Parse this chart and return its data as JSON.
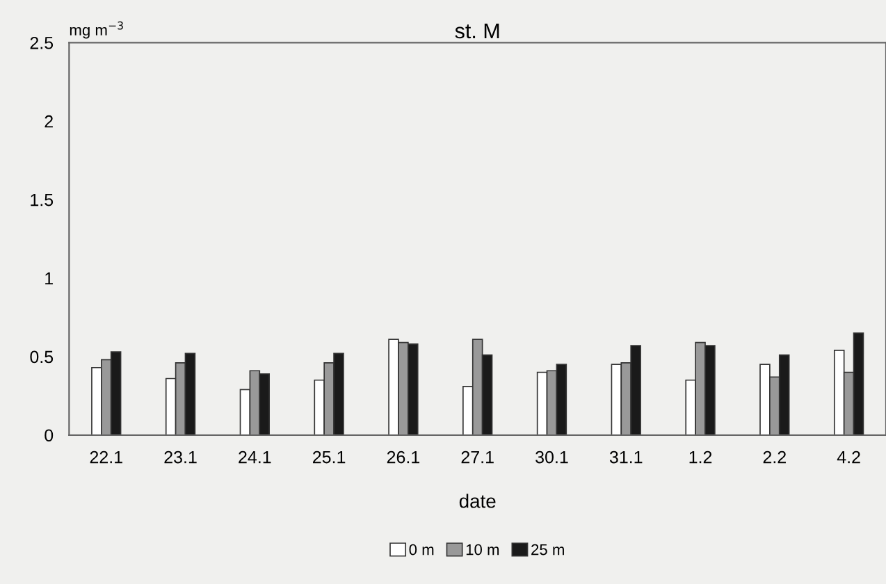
{
  "chart_data": {
    "type": "bar",
    "title": "st. M",
    "xlabel": "date",
    "ylabel": "mg m$^{−3}$",
    "categories": [
      "22.1",
      "23.1",
      "24.1",
      "25.1",
      "26.1",
      "27.1",
      "30.1",
      "31.1",
      "1.2",
      "2.2",
      "4.2"
    ],
    "series": [
      {
        "name": "0 m",
        "color": "#ffffff",
        "values": [
          0.43,
          0.36,
          0.29,
          0.35,
          0.61,
          0.31,
          0.4,
          0.45,
          0.35,
          0.45,
          0.54
        ]
      },
      {
        "name": "10 m",
        "color": "#999999",
        "values": [
          0.48,
          0.46,
          0.41,
          0.46,
          0.59,
          0.61,
          0.41,
          0.46,
          0.59,
          0.37,
          0.4
        ]
      },
      {
        "name": "25 m",
        "color": "#1a1a1a",
        "values": [
          0.53,
          0.52,
          0.39,
          0.52,
          0.58,
          0.51,
          0.45,
          0.57,
          0.57,
          0.51,
          0.65
        ]
      }
    ],
    "ylim": [
      0,
      2.5
    ],
    "yticks": [
      0,
      0.5,
      1,
      1.5,
      2,
      2.5
    ],
    "grid": false,
    "legend": "bottom"
  }
}
